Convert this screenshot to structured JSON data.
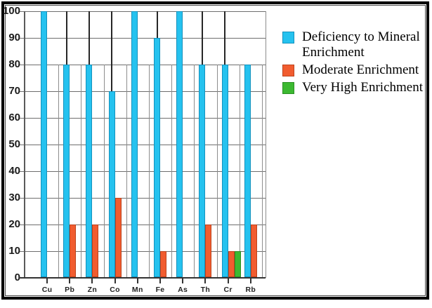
{
  "chart_data": {
    "type": "bar",
    "title": "",
    "xlabel": "",
    "ylabel": "",
    "categories": [
      "Cu",
      "Pb",
      "Zn",
      "Co",
      "Mn",
      "Fe",
      "As",
      "Th",
      "Cr",
      "Rb"
    ],
    "series": [
      {
        "name": "Deficiency to Mineral Enrichment",
        "fill": "#25C2EF",
        "border": "#1391BD",
        "values": [
          100,
          80,
          80,
          70,
          100,
          90,
          100,
          80,
          80,
          80
        ]
      },
      {
        "name": "Moderate Enrichment",
        "fill": "#F15C2F",
        "border": "#BC431D",
        "values": [
          0,
          20,
          20,
          30,
          0,
          10,
          0,
          20,
          10,
          20
        ]
      },
      {
        "name": "Very High Enrichment",
        "fill": "#3CB931",
        "border": "#2B8F24",
        "values": [
          0,
          0,
          0,
          0,
          0,
          0,
          0,
          0,
          10,
          0
        ]
      }
    ],
    "ylim": [
      0,
      100
    ],
    "yticks": [
      0,
      10,
      20,
      30,
      40,
      50,
      60,
      70,
      80,
      90,
      100
    ],
    "grid": true,
    "legend_position": "top-right",
    "drop_lines_above_categories": [
      "Pb",
      "Zn",
      "Co",
      "Fe",
      "Th",
      "Cr"
    ]
  },
  "colors": {
    "grid_horizontal": "#6e6e6e",
    "grid_vertical": "#8d8d8d",
    "drop_line": "#262626",
    "axis": "#333333",
    "frame_border": "#000000",
    "background": "#ffffff"
  }
}
